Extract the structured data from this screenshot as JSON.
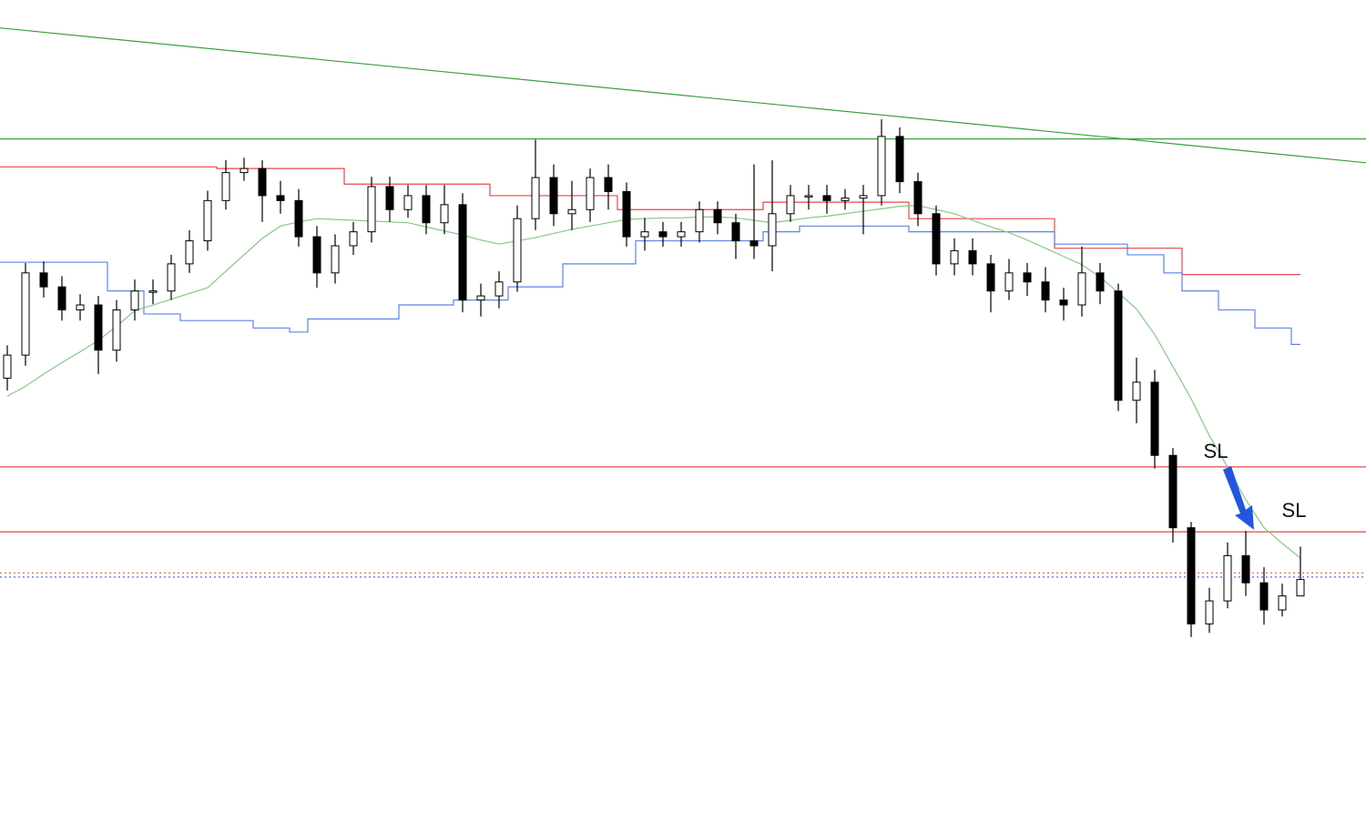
{
  "chart_data": {
    "type": "candlestick",
    "ylim": [
      0,
      100
    ],
    "open": [
      54.0,
      56.8,
      66.8,
      65.1,
      62.3,
      62.9,
      57.4,
      62.3,
      64.6,
      64.6,
      67.9,
      70.7,
      75.6,
      79.0,
      79.5,
      76.2,
      75.6,
      71.2,
      66.8,
      70.1,
      71.8,
      77.3,
      74.5,
      76.2,
      72.9,
      75.1,
      63.5,
      64.0,
      65.7,
      73.4,
      78.4,
      74.0,
      74.5,
      78.4,
      76.7,
      71.2,
      71.8,
      71.2,
      71.8,
      74.5,
      72.9,
      70.7,
      70.1,
      74.0,
      76.2,
      76.2,
      75.6,
      75.9,
      76.2,
      83.4,
      77.9,
      74.0,
      67.9,
      69.5,
      67.9,
      64.6,
      66.8,
      65.7,
      63.5,
      62.9,
      66.8,
      64.6,
      51.3,
      53.5,
      44.6,
      35.8,
      24.1,
      26.9,
      32.4,
      29.1,
      25.8,
      27.5
    ],
    "high": [
      58.0,
      68.0,
      68.2,
      66.4,
      64.2,
      64.0,
      63.5,
      66.0,
      66.0,
      69.0,
      72.0,
      76.8,
      80.5,
      80.8,
      80.5,
      78.0,
      77.0,
      72.5,
      71.5,
      73.0,
      78.5,
      78.5,
      77.5,
      77.5,
      77.5,
      76.5,
      65.5,
      67.0,
      75.0,
      83.0,
      80.0,
      78.0,
      79.5,
      80.0,
      77.8,
      73.5,
      73.0,
      73.0,
      75.5,
      75.5,
      74.0,
      80.0,
      80.5,
      77.5,
      77.5,
      77.5,
      77.0,
      77.5,
      85.5,
      84.5,
      79.0,
      75.0,
      71.0,
      71.0,
      69.0,
      68.5,
      68.0,
      67.5,
      65.0,
      70.0,
      68.0,
      65.5,
      56.5,
      55.0,
      45.5,
      36.5,
      28.5,
      34.0,
      35.4,
      31.0,
      29.0,
      33.5
    ],
    "low": [
      52.5,
      55.5,
      63.8,
      61.0,
      61.0,
      54.5,
      56.0,
      61.0,
      63.0,
      63.5,
      66.8,
      69.5,
      74.5,
      78.0,
      73.0,
      74.0,
      70.0,
      65.0,
      65.5,
      69.0,
      70.5,
      73.0,
      73.5,
      71.5,
      71.5,
      62.0,
      61.5,
      62.5,
      64.5,
      72.0,
      72.5,
      72.0,
      73.0,
      74.5,
      70.0,
      69.5,
      70.0,
      70.0,
      70.5,
      71.5,
      68.5,
      68.5,
      67.0,
      73.0,
      74.5,
      74.0,
      74.5,
      71.5,
      75.0,
      76.5,
      72.5,
      66.5,
      66.5,
      66.5,
      62.0,
      63.5,
      64.0,
      62.0,
      61.0,
      61.5,
      63.0,
      50.0,
      48.5,
      43.0,
      34.0,
      22.5,
      23.0,
      26.0,
      27.5,
      24.0,
      25.0,
      28.0
    ],
    "close": [
      56.8,
      66.8,
      65.1,
      62.3,
      62.9,
      57.4,
      62.3,
      64.6,
      64.6,
      67.9,
      70.7,
      75.6,
      79.0,
      79.5,
      76.2,
      75.6,
      71.2,
      66.8,
      70.1,
      71.8,
      77.3,
      74.5,
      76.2,
      72.9,
      75.1,
      63.5,
      64.0,
      65.7,
      73.4,
      78.4,
      74.0,
      74.5,
      78.4,
      76.7,
      71.2,
      71.8,
      71.2,
      71.8,
      74.5,
      72.9,
      70.7,
      70.1,
      74.0,
      76.2,
      76.2,
      75.6,
      75.9,
      76.2,
      83.4,
      77.9,
      74.0,
      67.9,
      69.5,
      67.9,
      64.6,
      66.8,
      65.7,
      63.5,
      62.9,
      66.8,
      64.6,
      51.3,
      53.5,
      44.6,
      35.8,
      24.1,
      26.9,
      32.4,
      29.1,
      25.8,
      27.5,
      29.5
    ],
    "ma": {
      "color": "#86c886",
      "values": [
        51.8,
        53.0,
        54.5,
        55.9,
        57.2,
        58.6,
        60.3,
        62.2,
        62.9,
        63.6,
        64.3,
        65.0,
        67.0,
        69.0,
        71.0,
        72.5,
        73.0,
        73.4,
        73.3,
        73.2,
        73.1,
        73.0,
        72.9,
        72.4,
        71.9,
        71.4,
        70.8,
        70.3,
        70.7,
        71.1,
        71.6,
        72.1,
        72.5,
        72.9,
        73.3,
        73.4,
        73.5,
        73.5,
        73.6,
        73.6,
        73.5,
        73.2,
        72.9,
        73.2,
        73.5,
        73.7,
        74.0,
        74.3,
        74.6,
        74.9,
        75.0,
        74.5,
        74.0,
        73.2,
        72.4,
        71.7,
        70.8,
        69.8,
        68.8,
        67.8,
        66.3,
        64.4,
        62.4,
        59.3,
        55.4,
        51.5,
        47.0,
        43.2,
        39.2,
        35.8,
        33.9,
        32.1
      ]
    },
    "upper": {
      "color": "#e8474a",
      "values": [
        79.7,
        79.7,
        79.7,
        79.7,
        79.7,
        79.7,
        79.7,
        79.7,
        79.7,
        79.7,
        79.7,
        79.7,
        79.5,
        79.5,
        79.5,
        79.5,
        79.5,
        79.5,
        79.5,
        77.6,
        77.6,
        77.6,
        77.6,
        77.6,
        77.6,
        77.6,
        77.6,
        76.2,
        76.2,
        76.2,
        76.2,
        76.2,
        76.2,
        76.2,
        74.5,
        74.5,
        74.5,
        74.5,
        74.5,
        74.5,
        74.5,
        74.5,
        75.4,
        75.4,
        75.4,
        75.4,
        75.4,
        75.4,
        75.4,
        75.4,
        73.4,
        73.4,
        73.4,
        73.4,
        73.4,
        73.4,
        73.4,
        73.4,
        69.8,
        69.8,
        69.8,
        69.8,
        69.8,
        69.8,
        69.8,
        66.6,
        66.6,
        66.6,
        66.6,
        66.6,
        66.6,
        66.6
      ]
    },
    "lower": {
      "color": "#5b84e8",
      "values": [
        68.1,
        68.1,
        68.1,
        68.1,
        68.1,
        68.1,
        64.6,
        64.6,
        61.8,
        61.8,
        61.0,
        61.0,
        61.0,
        61.0,
        60.1,
        60.1,
        59.6,
        61.2,
        61.2,
        61.2,
        61.2,
        61.2,
        62.9,
        62.9,
        62.9,
        63.5,
        63.5,
        63.5,
        65.1,
        65.1,
        65.1,
        67.9,
        67.9,
        67.9,
        67.9,
        70.7,
        70.7,
        70.7,
        70.7,
        70.7,
        70.7,
        70.7,
        71.8,
        71.8,
        72.5,
        72.5,
        72.5,
        72.5,
        72.5,
        72.5,
        71.8,
        71.8,
        71.8,
        71.8,
        71.8,
        71.8,
        71.8,
        71.8,
        70.3,
        70.3,
        70.3,
        70.3,
        69.0,
        69.0,
        66.8,
        64.6,
        64.6,
        62.3,
        62.3,
        60.1,
        60.1,
        58.1
      ]
    },
    "trendline": {
      "color": "#3aa03a",
      "values": [
        96.6,
        80.2
      ]
    },
    "levels": [
      {
        "value": 83.1,
        "color": "#3aa03a",
        "style": "solid"
      },
      {
        "value": 43.2,
        "color": "#e8474a",
        "style": "solid"
      },
      {
        "value": 35.3,
        "color": "#e8474a",
        "style": "solid"
      },
      {
        "value": 30.3,
        "color": "#f06a4a",
        "style": "dotted"
      },
      {
        "value": 29.8,
        "color": "#4a6ee0",
        "style": "dotted"
      }
    ],
    "annotations": [
      "SL",
      "SL"
    ]
  }
}
